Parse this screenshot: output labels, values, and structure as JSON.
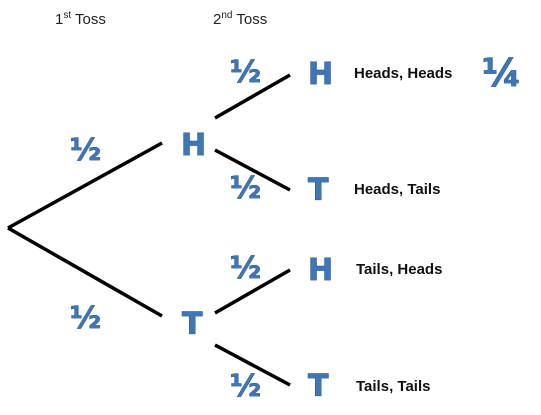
{
  "headers": {
    "first": {
      "ordinal": "1",
      "suffix": "st",
      "word": " Toss"
    },
    "second": {
      "ordinal": "2",
      "suffix": "nd",
      "word": " Toss"
    }
  },
  "first_level": {
    "heads": {
      "letter": "H",
      "prob": "½"
    },
    "tails": {
      "letter": "T",
      "prob": "½"
    }
  },
  "second_level": [
    {
      "letter": "H",
      "prob": "½",
      "outcome": "Heads, Heads"
    },
    {
      "letter": "T",
      "prob": "½",
      "outcome": "Heads, Tails"
    },
    {
      "letter": "H",
      "prob": "½",
      "outcome": "Tails, Heads"
    },
    {
      "letter": "T",
      "prob": "½",
      "outcome": "Tails, Tails"
    }
  ],
  "result_probability": "¼",
  "colors": {
    "accent": "#3f77b6",
    "accent_outline": "#22497a",
    "line": "#000000"
  }
}
